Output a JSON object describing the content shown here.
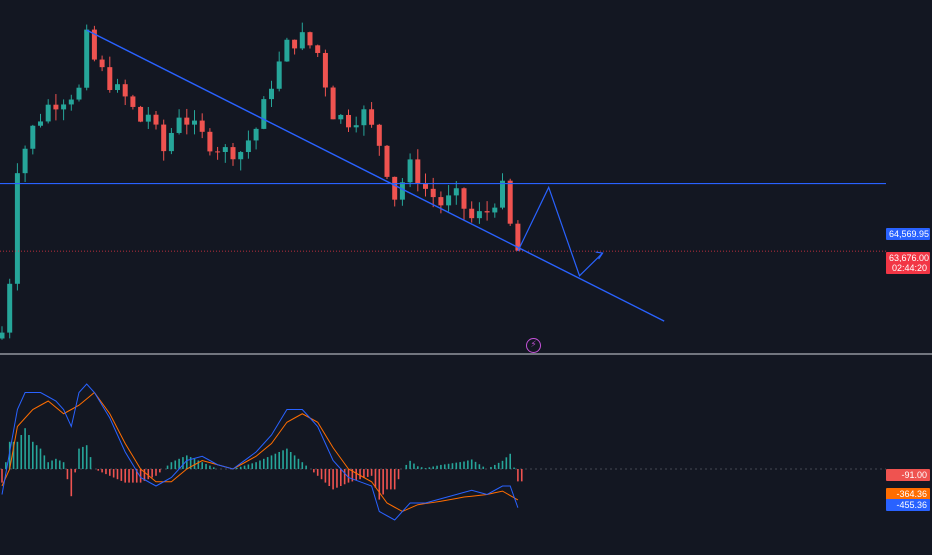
{
  "chart_data": {
    "type": "candlestick",
    "instrument": "",
    "price_panel": {
      "price_range": [
        62500,
        66800
      ],
      "horizontal_level": {
        "value": 64569.95,
        "label": "64,569.95",
        "color": "#2962ff"
      },
      "last_price": {
        "value": 63676.0,
        "label": "63,676.00",
        "countdown": "02:44:20",
        "color": "#f23645"
      },
      "trendline": {
        "from": {
          "bar": 11,
          "price": 66600
        },
        "to": {
          "bar": 86,
          "price": 62750
        },
        "color": "#2962ff"
      },
      "projection_path": [
        {
          "bar": 67,
          "price": 63676
        },
        {
          "bar": 71,
          "price": 64520
        },
        {
          "bar": 75,
          "price": 63350
        },
        {
          "bar": 78,
          "price": 63650
        }
      ],
      "up_color": "#26a69a",
      "down_color": "#ef5350"
    },
    "macd_panel": {
      "histogram_label": "-91.00",
      "signal_label": "-364.36",
      "macd_label": "-455.36",
      "histogram_value": -91.0,
      "signal_value": -364.36,
      "macd_value": -455.36,
      "macd_color": "#2962ff",
      "signal_color": "#ff6d00",
      "hist_up_color": "#26a69a",
      "hist_down_color": "#ef5350"
    },
    "icons": {
      "indicator": "lightning-icon"
    }
  }
}
